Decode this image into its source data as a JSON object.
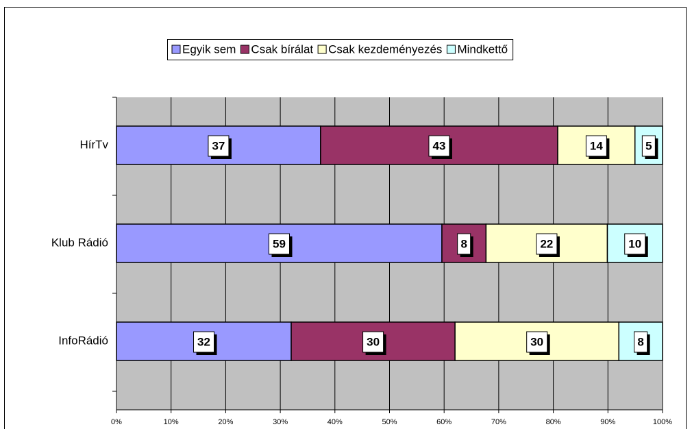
{
  "chart_data": {
    "type": "bar",
    "orientation": "horizontal",
    "stacked": "percent",
    "categories": [
      "HírTv",
      "Klub Rádió",
      "InfoRádió"
    ],
    "series": [
      {
        "name": "Egyik sem",
        "color": "#9999ff",
        "values": [
          37,
          59,
          32
        ]
      },
      {
        "name": "Csak bírálat",
        "color": "#993366",
        "values": [
          43,
          8,
          30
        ]
      },
      {
        "name": "Csak kezdeményezés",
        "color": "#ffffcc",
        "values": [
          14,
          22,
          30
        ]
      },
      {
        "name": "Mindkettő",
        "color": "#ccffff",
        "values": [
          5,
          10,
          8
        ]
      }
    ],
    "xlim": [
      0,
      100
    ],
    "xticks": [
      {
        "value": 0,
        "label": "0%"
      },
      {
        "value": 10,
        "label": "10%"
      },
      {
        "value": 20,
        "label": "20%"
      },
      {
        "value": 30,
        "label": "30%"
      },
      {
        "value": 40,
        "label": "40%"
      },
      {
        "value": 50,
        "label": "50%"
      },
      {
        "value": 60,
        "label": "60%"
      },
      {
        "value": 70,
        "label": "70%"
      },
      {
        "value": 80,
        "label": "80%"
      },
      {
        "value": 90,
        "label": "90%"
      },
      {
        "value": 100,
        "label": "100%"
      }
    ],
    "grid": true,
    "legend": "top"
  }
}
